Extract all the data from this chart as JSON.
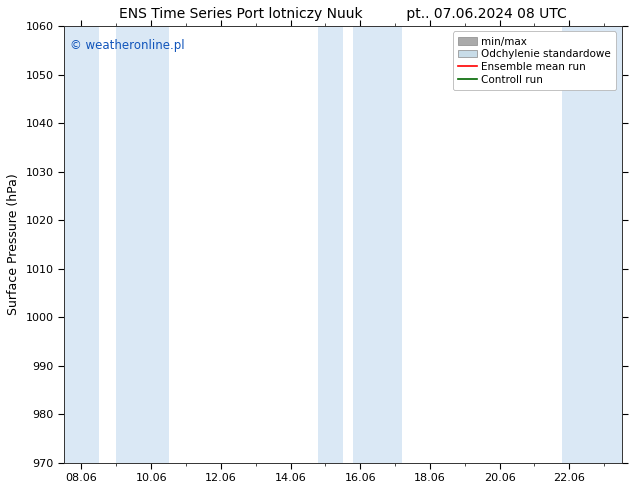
{
  "title_left": "ENS Time Series Port lotniczy Nuuk",
  "title_right": "pt.. 07.06.2024 08 UTC",
  "ylabel": "Surface Pressure (hPa)",
  "ylim": [
    970,
    1060
  ],
  "yticks": [
    970,
    980,
    990,
    1000,
    1010,
    1020,
    1030,
    1040,
    1050,
    1060
  ],
  "xlim": [
    7.5,
    23.5
  ],
  "xtick_positions": [
    8.0,
    10.0,
    12.0,
    14.0,
    16.0,
    18.0,
    20.0,
    22.0
  ],
  "xtick_labels": [
    "08.06",
    "10.06",
    "12.06",
    "14.06",
    "16.06",
    "18.06",
    "20.06",
    "22.06"
  ],
  "watermark": "© weatheronline.pl",
  "watermark_color": "#1155bb",
  "bg_color": "#ffffff",
  "plot_bg_color": "#ffffff",
  "shade_color": "#dae8f5",
  "shade_columns": [
    {
      "x_start": 7.5,
      "x_end": 8.5
    },
    {
      "x_start": 9.0,
      "x_end": 10.5
    },
    {
      "x_start": 14.8,
      "x_end": 15.5
    },
    {
      "x_start": 15.8,
      "x_end": 17.2
    },
    {
      "x_start": 21.8,
      "x_end": 23.5
    }
  ],
  "legend_entries": [
    {
      "label": "min/max",
      "color": "#aaaaaa",
      "type": "fill"
    },
    {
      "label": "Odchylenie standardowe",
      "color": "#c8dce8",
      "type": "fill"
    },
    {
      "label": "Ensemble mean run",
      "color": "#ff0000",
      "type": "line"
    },
    {
      "label": "Controll run",
      "color": "#006600",
      "type": "line"
    }
  ],
  "title_fontsize": 10,
  "tick_fontsize": 8,
  "ylabel_fontsize": 9,
  "legend_fontsize": 7.5
}
